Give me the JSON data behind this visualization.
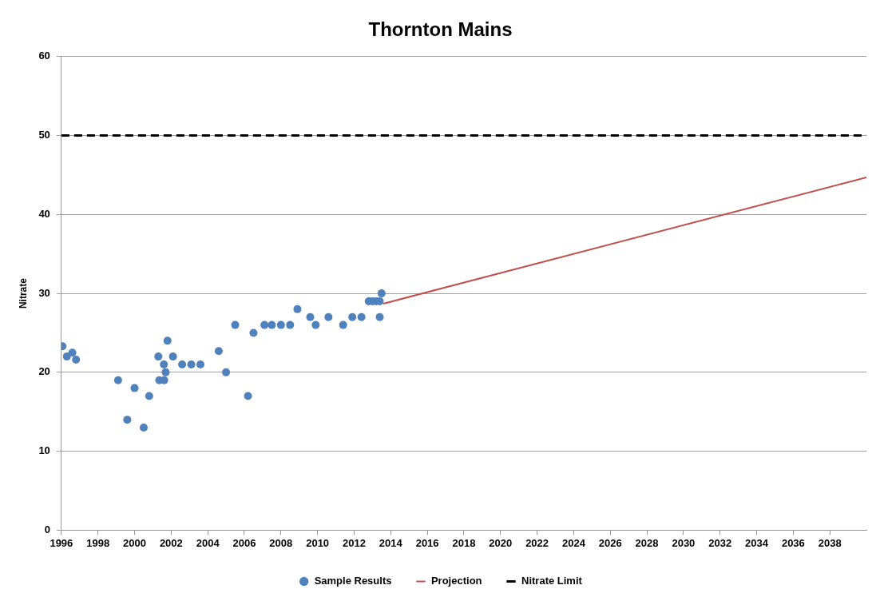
{
  "chart_data": {
    "type": "scatter",
    "title": "Thornton Mains",
    "ylabel": "Nitrate",
    "xlim": [
      1996,
      2040
    ],
    "xticks": [
      1996,
      1998,
      2000,
      2002,
      2004,
      2006,
      2008,
      2010,
      2012,
      2014,
      2016,
      2018,
      2020,
      2022,
      2024,
      2026,
      2028,
      2030,
      2032,
      2034,
      2036,
      2038
    ],
    "ylim": [
      0,
      60
    ],
    "yticks": [
      0,
      10,
      20,
      30,
      40,
      50,
      60
    ],
    "grid": "y",
    "legend": "bottom",
    "series": [
      {
        "name": "Sample Results",
        "color": "#4f81bd",
        "marker": "circle",
        "x": [
          1996.06,
          1996.3,
          1996.6,
          1996.8,
          1999.1,
          1999.6,
          2000.0,
          2000.5,
          2000.8,
          2001.3,
          2001.35,
          2001.62,
          2001.7,
          2001.6,
          2001.8,
          2002.1,
          2002.6,
          2003.1,
          2003.6,
          2004.6,
          2005.0,
          2005.5,
          2006.2,
          2006.5,
          2007.1,
          2007.5,
          2008.0,
          2008.5,
          2008.9,
          2009.6,
          2009.9,
          2010.6,
          2011.4,
          2011.9,
          2012.4,
          2012.8,
          2013.0,
          2013.2,
          2013.4,
          2013.5,
          2013.4
        ],
        "values": [
          23.3,
          22,
          22.5,
          21.6,
          19,
          14,
          18,
          13,
          17,
          22,
          19,
          19,
          20,
          21,
          24,
          22,
          21,
          21,
          21,
          22.7,
          20,
          26,
          17,
          25,
          26,
          26,
          26,
          26,
          28,
          27,
          26,
          27,
          26,
          27,
          27,
          29,
          29,
          29,
          29,
          30,
          27
        ]
      },
      {
        "name": "Projection",
        "type": "line",
        "color": "#c0504d",
        "marker": "none",
        "line_style": "solid",
        "x": [
          2013.6,
          2040
        ],
        "values": [
          28.7,
          44.7
        ]
      }
    ],
    "ref_lines": [
      {
        "axis": "y",
        "value": 50,
        "label": "Nitrate Limit",
        "color": "#000000",
        "line_style": "dashed"
      }
    ]
  }
}
